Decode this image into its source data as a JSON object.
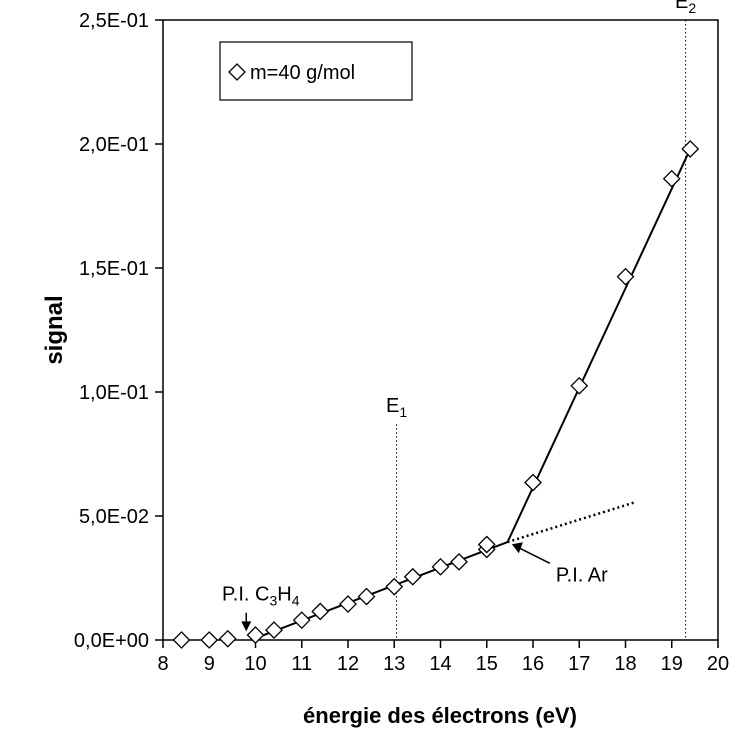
{
  "chart_data": {
    "type": "scatter",
    "xlabel": "énergie des électrons (eV)",
    "ylabel": "signal",
    "xlim": [
      8,
      20
    ],
    "ylim": [
      0,
      0.25
    ],
    "x_ticks": [
      "8",
      "9",
      "10",
      "11",
      "12",
      "13",
      "14",
      "15",
      "16",
      "17",
      "18",
      "19",
      "20"
    ],
    "y_ticks": [
      "0,0E+00",
      "5,0E-02",
      "1,0E-01",
      "1,5E-01",
      "2,0E-01",
      "2,5E-01"
    ],
    "grid": false,
    "legend_position": "top-left",
    "series": [
      {
        "name": "m=40 g/mol",
        "marker": "diamond-open",
        "color": "#000000",
        "points": [
          {
            "x": 8.4,
            "y": 0.0
          },
          {
            "x": 9.0,
            "y": 0.0
          },
          {
            "x": 9.4,
            "y": 0.0005
          },
          {
            "x": 10.0,
            "y": 0.002
          },
          {
            "x": 10.4,
            "y": 0.004
          },
          {
            "x": 11.0,
            "y": 0.008
          },
          {
            "x": 11.4,
            "y": 0.0115
          },
          {
            "x": 12.0,
            "y": 0.0145
          },
          {
            "x": 12.4,
            "y": 0.0175
          },
          {
            "x": 13.0,
            "y": 0.0215
          },
          {
            "x": 13.4,
            "y": 0.0255
          },
          {
            "x": 14.0,
            "y": 0.0295
          },
          {
            "x": 14.4,
            "y": 0.0315
          },
          {
            "x": 15.0,
            "y": 0.0365
          },
          {
            "x": 15.0,
            "y": 0.0385
          },
          {
            "x": 16.0,
            "y": 0.0635
          },
          {
            "x": 17.0,
            "y": 0.1025
          },
          {
            "x": 18.0,
            "y": 0.1465
          },
          {
            "x": 19.0,
            "y": 0.186
          },
          {
            "x": 19.4,
            "y": 0.198
          }
        ]
      }
    ],
    "fit_lines": [
      {
        "x1": 9.9,
        "y1": 0.0,
        "x2": 15.45,
        "y2": 0.0395,
        "style": "solid"
      },
      {
        "x1": 15.45,
        "y1": 0.0395,
        "x2": 19.4,
        "y2": 0.198,
        "style": "solid"
      },
      {
        "x1": 15.45,
        "y1": 0.0395,
        "x2": 18.2,
        "y2": 0.0555,
        "style": "dotted"
      }
    ],
    "vertical_lines": [
      {
        "x": 13.05,
        "label_main": "E",
        "label_sub": "1",
        "y_top": 0.087
      },
      {
        "x": 19.3,
        "label_main": "E",
        "label_sub": "2",
        "y_top": 0.25
      }
    ],
    "annotations": {
      "pi_c3h4": {
        "prefix": "P.I. C",
        "sub1": "3",
        "mid": "H",
        "sub2": "4",
        "arrow_x": 9.8,
        "arrow_y_from": 0.011,
        "arrow_y_to": 0.0035
      },
      "pi_ar": {
        "text": "P.I. Ar",
        "arrow_to_x": 15.5,
        "arrow_to_y": 0.039
      }
    }
  }
}
